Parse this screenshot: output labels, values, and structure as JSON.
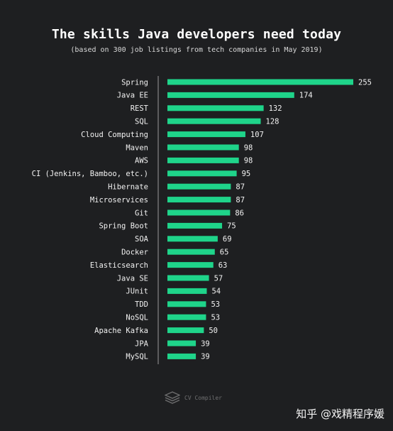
{
  "chart_data": {
    "type": "bar",
    "orientation": "horizontal",
    "title": "The skills Java developers need today",
    "subtitle": "(based on 300 job listings from tech companies in May 2019)",
    "categories": [
      "Spring",
      "Java EE",
      "REST",
      "SQL",
      "Cloud Computing",
      "Maven",
      "AWS",
      "CI (Jenkins, Bamboo, etc.)",
      "Hibernate",
      "Microservices",
      "Git",
      "Spring Boot",
      "SOA",
      "Docker",
      "Elasticsearch",
      "Java SE",
      "JUnit",
      "TDD",
      "NoSQL",
      "Apache Kafka",
      "JPA",
      "MySQL"
    ],
    "values": [
      255,
      174,
      132,
      128,
      107,
      98,
      98,
      95,
      87,
      87,
      86,
      75,
      69,
      65,
      63,
      57,
      54,
      53,
      53,
      50,
      39,
      39
    ],
    "xlim": [
      0,
      255
    ],
    "bar_color": "#1fd48a",
    "grid": false
  },
  "watermark": {
    "text": "CV Compiler",
    "icon": "stack-layers-icon"
  },
  "credit": "知乎 @戏精程序媛",
  "colors": {
    "background": "#1e1f21",
    "text": "#f2f2f2",
    "axis": "#9a9a9a"
  }
}
